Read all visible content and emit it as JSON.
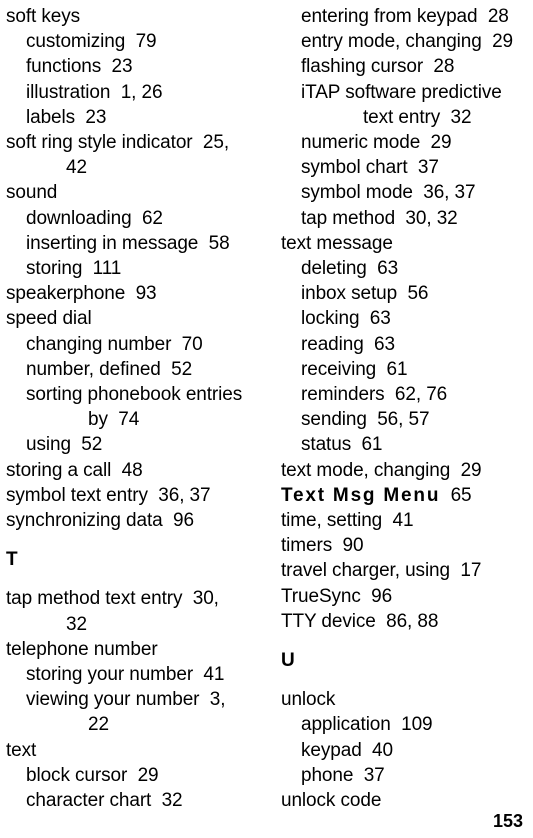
{
  "page_number": "153",
  "left_column": [
    {
      "cls": "line",
      "text": "soft keys"
    },
    {
      "cls": "line indent1",
      "text": "customizing  79"
    },
    {
      "cls": "line indent1",
      "text": "functions  23"
    },
    {
      "cls": "line indent1",
      "text": "illustration  1, 26"
    },
    {
      "cls": "line indent1",
      "text": "labels  23"
    },
    {
      "cls": "line",
      "text": "soft ring style indicator  25, "
    },
    {
      "cls": "line indent2",
      "text": "42"
    },
    {
      "cls": "line",
      "text": "sound"
    },
    {
      "cls": "line indent1",
      "text": "downloading  62"
    },
    {
      "cls": "line indent1",
      "text": "inserting in message  58"
    },
    {
      "cls": "line indent1",
      "text": "storing  111"
    },
    {
      "cls": "line",
      "text": "speakerphone  93"
    },
    {
      "cls": "line",
      "text": "speed dial"
    },
    {
      "cls": "line indent1",
      "text": "changing number  70"
    },
    {
      "cls": "line indent1",
      "text": "number, defined  52"
    },
    {
      "cls": "line indent1",
      "text": "sorting phonebook entries "
    },
    {
      "cls": "line indent3",
      "text": "by  74"
    },
    {
      "cls": "line indent1",
      "text": "using  52"
    },
    {
      "cls": "line",
      "text": "storing a call  48"
    },
    {
      "cls": "line",
      "text": "symbol text entry  36, 37"
    },
    {
      "cls": "line",
      "text": "synchronizing data  96"
    },
    {
      "cls": "section-letter",
      "text": "T"
    },
    {
      "cls": "line",
      "text": "tap method text entry  30, "
    },
    {
      "cls": "line indent2",
      "text": "32"
    },
    {
      "cls": "line",
      "text": "telephone number"
    },
    {
      "cls": "line indent1",
      "text": "storing your number  41"
    },
    {
      "cls": "line indent1",
      "text": "viewing your number  3, "
    },
    {
      "cls": "line indent3",
      "text": "22"
    },
    {
      "cls": "line",
      "text": "text"
    },
    {
      "cls": "line indent1",
      "text": "block cursor  29"
    },
    {
      "cls": "line indent1",
      "text": "character chart  32"
    }
  ],
  "right_column": [
    {
      "cls": "line indent1",
      "text": "entering from keypad  28"
    },
    {
      "cls": "line indent1",
      "text": "entry mode, changing  29"
    },
    {
      "cls": "line indent1",
      "text": "flashing cursor  28"
    },
    {
      "cls": "line indent1",
      "text": "iTAP software predictive "
    },
    {
      "cls": "line indent3",
      "text": "text entry  32"
    },
    {
      "cls": "line indent1",
      "text": "numeric mode  29"
    },
    {
      "cls": "line indent1",
      "text": "symbol chart  37"
    },
    {
      "cls": "line indent1",
      "text": "symbol mode  36, 37"
    },
    {
      "cls": "line indent1",
      "text": "tap method  30, 32"
    },
    {
      "cls": "line",
      "text": "text message"
    },
    {
      "cls": "line indent1",
      "text": "deleting  63"
    },
    {
      "cls": "line indent1",
      "text": "inbox setup  56"
    },
    {
      "cls": "line indent1",
      "text": "locking  63"
    },
    {
      "cls": "line indent1",
      "text": "reading  63"
    },
    {
      "cls": "line indent1",
      "text": "receiving  61"
    },
    {
      "cls": "line indent1",
      "text": "reminders  62, 76"
    },
    {
      "cls": "line indent1",
      "text": "sending  56, 57"
    },
    {
      "cls": "line indent1",
      "text": "status  61"
    },
    {
      "cls": "line",
      "text": "text mode, changing  29"
    },
    {
      "cls": "line",
      "html": "<span class=\"menu-bold\">Text Msg Menu</span>  65"
    },
    {
      "cls": "line",
      "text": "time, setting  41"
    },
    {
      "cls": "line",
      "text": "timers  90"
    },
    {
      "cls": "line",
      "text": "travel charger, using  17"
    },
    {
      "cls": "line",
      "text": "TrueSync  96"
    },
    {
      "cls": "line",
      "text": "TTY device  86, 88"
    },
    {
      "cls": "section-letter",
      "text": "U"
    },
    {
      "cls": "line",
      "text": "unlock"
    },
    {
      "cls": "line indent1",
      "text": "application  109"
    },
    {
      "cls": "line indent1",
      "text": "keypad  40"
    },
    {
      "cls": "line indent1",
      "text": "phone  37"
    },
    {
      "cls": "line",
      "text": "unlock code"
    }
  ]
}
